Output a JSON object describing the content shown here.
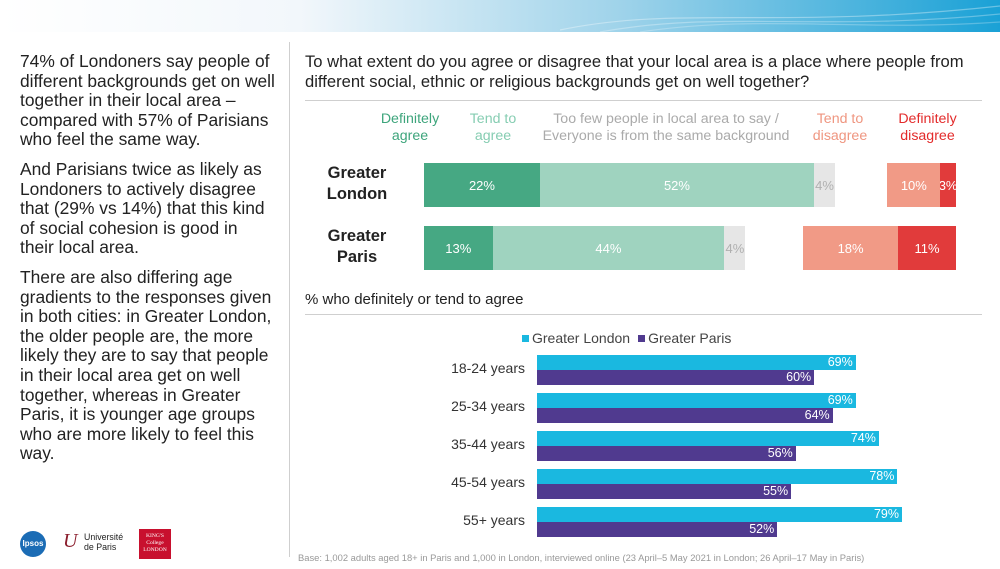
{
  "left_text": {
    "paragraphs": [
      "74% of Londoners say people of different backgrounds get on well together in their local area – compared with 57% of Parisians who feel the same way.",
      "And Parisians twice as likely as Londoners to actively disagree that (29% vs 14%) that this kind of social cohesion is good in their local area.",
      "There are also differing age gradients to the responses given in both cities: in Greater London, the older people are, the more likely they are to say that people in their local area get on well together, whereas in Greater Paris, it is younger age groups who are more likely to feel this way."
    ]
  },
  "logos": {
    "ipsos": "Ipsos",
    "up_mark": "U",
    "up_line1": "Université",
    "up_line2": "de Paris",
    "kings_line1": "KING'S",
    "kings_line2": "College",
    "kings_line3": "LONDON"
  },
  "question": "To what extent do you agree or disagree that your local area is a place where people from different social, ethnic or religious backgrounds get on well together?",
  "subtitle": "% who definitely or tend to agree",
  "base_note": "Base: 1,002 adults aged 18+ in Paris and 1,000 in London, interviewed online (23 April–5 May 2021 in London; 26 April–17 May in Paris)",
  "colors": {
    "definitely_agree": "#46a883",
    "tend_agree": "#9fd3bf",
    "too_few": "#e6e6e6",
    "tend_disagree": "#f19a86",
    "definitely_disagree": "#e13b3b",
    "london": "#1ab8e0",
    "paris": "#503a8f"
  },
  "chart_data": [
    {
      "type": "bar",
      "orientation": "horizontal-stacked",
      "categories": [
        "Greater London",
        "Greater Paris"
      ],
      "category_labels": [
        [
          "Greater",
          "London"
        ],
        [
          "Greater",
          "Paris"
        ]
      ],
      "response_headers": [
        [
          "Definitely",
          "agree"
        ],
        [
          "Tend to",
          "agree"
        ],
        [
          "Too few people in local area to say /",
          "Everyone is from the same background"
        ],
        [
          "Tend to",
          "disagree"
        ],
        [
          "Definitely",
          "disagree"
        ]
      ],
      "series": [
        {
          "name": "Definitely agree",
          "values": [
            22,
            13
          ],
          "labels": [
            "22%",
            "13%"
          ]
        },
        {
          "name": "Tend to agree",
          "values": [
            52,
            44
          ],
          "labels": [
            "52%",
            "44%"
          ]
        },
        {
          "name": "Too few people in local area to say / Everyone is from the same background",
          "values": [
            4,
            4
          ],
          "labels": [
            "4%",
            "4%"
          ]
        },
        {
          "name": "Tend to disagree",
          "values": [
            10,
            18
          ],
          "labels": [
            "10%",
            "18%"
          ]
        },
        {
          "name": "Definitely disagree",
          "values": [
            3,
            11
          ],
          "labels": [
            "3%",
            "11%"
          ]
        }
      ],
      "title": "To what extent do you agree or disagree that your local area is a place where people from different social, ethnic or religious backgrounds get on well together?"
    },
    {
      "type": "bar",
      "orientation": "horizontal-grouped",
      "title": "% who definitely or tend to agree",
      "categories": [
        "18-24 years",
        "25-34 years",
        "35-44 years",
        "45-54 years",
        "55+ years"
      ],
      "series": [
        {
          "name": "Greater London",
          "values": [
            69,
            69,
            74,
            78,
            79
          ],
          "labels": [
            "69%",
            "69%",
            "74%",
            "78%",
            "79%"
          ]
        },
        {
          "name": "Greater Paris",
          "values": [
            60,
            64,
            56,
            55,
            52
          ],
          "labels": [
            "60%",
            "64%",
            "56%",
            "55%",
            "52%"
          ]
        }
      ],
      "legend": "top"
    }
  ]
}
